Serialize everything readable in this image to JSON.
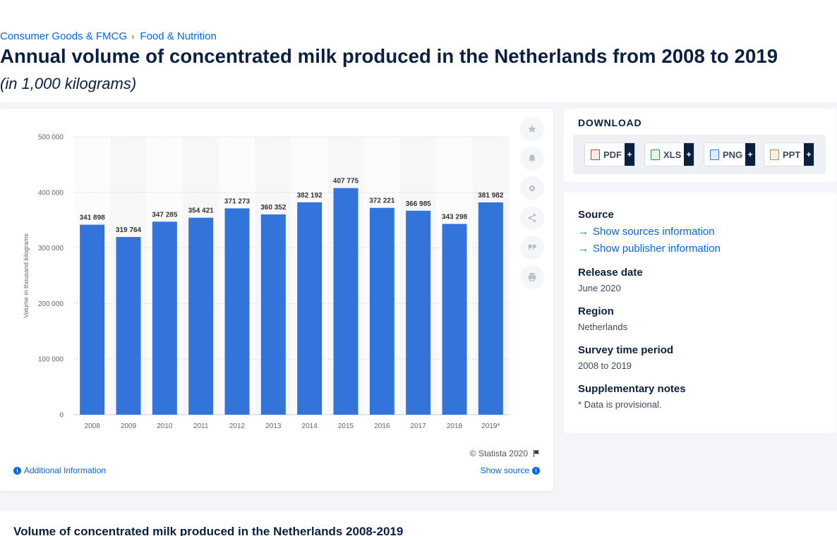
{
  "breadcrumb": {
    "item1": "Consumer Goods & FMCG",
    "separator": "›",
    "item2": "Food & Nutrition"
  },
  "page": {
    "title": "Annual volume of concentrated milk produced in the Netherlands from 2008 to 2019",
    "subtitle": "(in 1,000 kilograms)"
  },
  "chart_footer": {
    "copyright": "© Statista 2020",
    "additional_info": "Additional Information",
    "show_source": "Show source"
  },
  "download": {
    "title": "DOWNLOAD",
    "buttons": [
      {
        "label": "PDF",
        "color": "#d9342b"
      },
      {
        "label": "XLS",
        "color": "#2e9a47"
      },
      {
        "label": "PNG",
        "color": "#2d7fd4"
      },
      {
        "label": "PPT",
        "color": "#e8762b"
      }
    ],
    "plus": "+"
  },
  "meta": {
    "source_label": "Source",
    "show_sources": "Show sources information",
    "show_publisher": "Show publisher information",
    "release_label": "Release date",
    "release_value": "June 2020",
    "region_label": "Region",
    "region_value": "Netherlands",
    "survey_label": "Survey time period",
    "survey_value": "2008 to 2019",
    "notes_label": "Supplementary notes",
    "notes_value": "* Data is provisional."
  },
  "bottom": {
    "title": "Volume of concentrated milk produced in the Netherlands 2008-2019"
  },
  "tools": [
    "star-icon",
    "bell-icon",
    "gear-icon",
    "share-icon",
    "quote-icon",
    "print-icon"
  ],
  "colors": {
    "bar": "#3274d9",
    "accent": "#0666e5",
    "navy": "#0b1f3f"
  },
  "chart_data": {
    "type": "bar",
    "categories": [
      "2008",
      "2009",
      "2010",
      "2011",
      "2012",
      "2013",
      "2014",
      "2015",
      "2016",
      "2017",
      "2018",
      "2019*"
    ],
    "values": [
      341898,
      319764,
      347285,
      354421,
      371273,
      360352,
      382192,
      407775,
      372221,
      366985,
      343298,
      381982
    ],
    "value_labels": [
      "341 898",
      "319 764",
      "347 285",
      "354 421",
      "371 273",
      "360 352",
      "382 192",
      "407 775",
      "372 221",
      "366 985",
      "343 298",
      "381 982"
    ],
    "ylabel": "Volume in thousand kilograms",
    "ylim": [
      0,
      500000
    ],
    "yticks": [
      0,
      100000,
      200000,
      300000,
      400000,
      500000
    ],
    "ytick_labels": [
      "0",
      "100 000",
      "200 000",
      "300 000",
      "400 000",
      "500 000"
    ],
    "grid": true
  }
}
